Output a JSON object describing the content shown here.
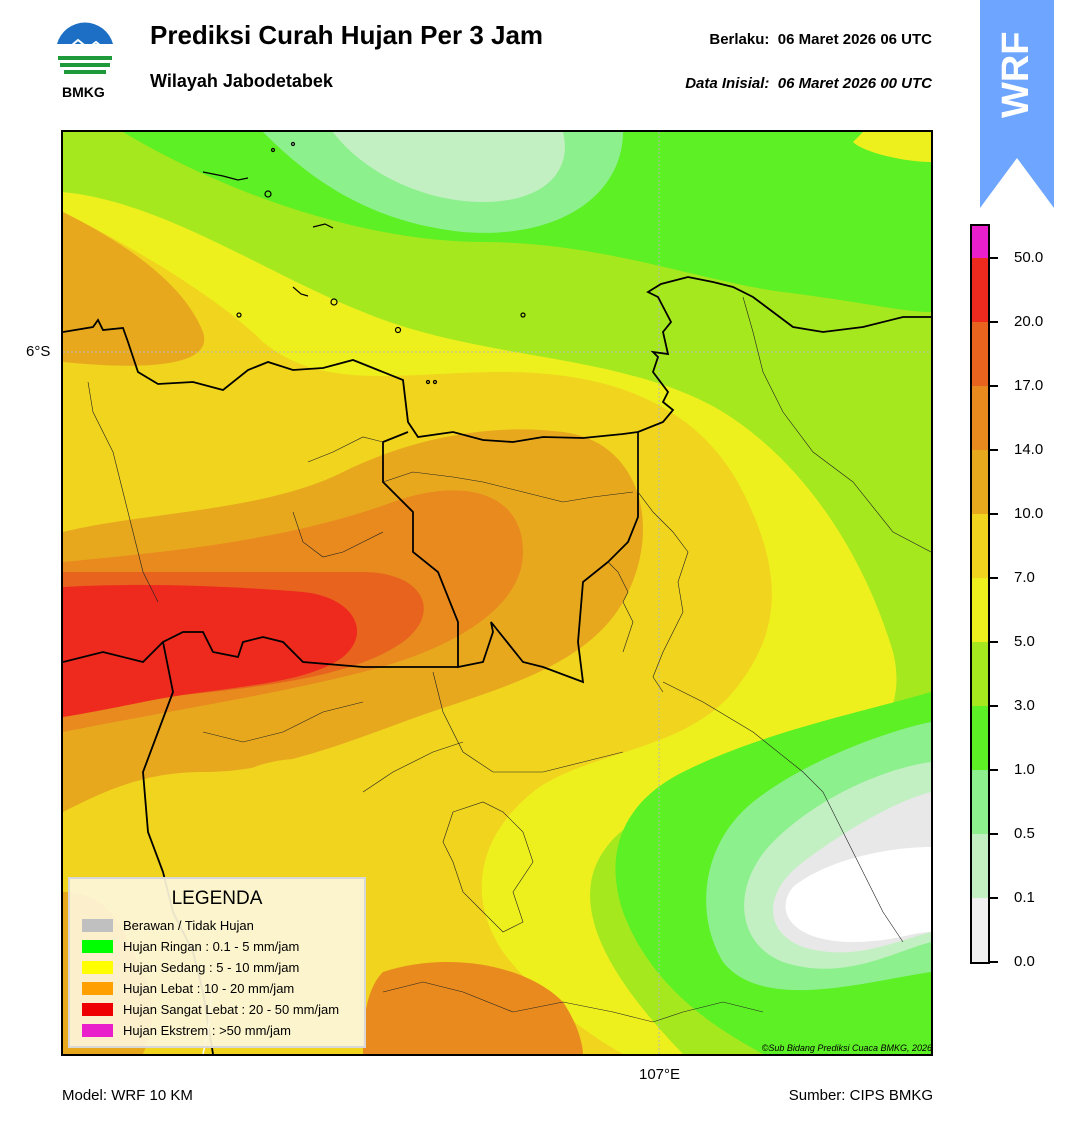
{
  "header": {
    "title": "Prediksi Curah Hujan Per 3 Jam",
    "subtitle": "Wilayah Jabodetabek",
    "valid_label": "Berlaku:",
    "valid_time": "06 Maret 2026 06 UTC",
    "init_label": "Data Inisial:",
    "init_time": "06 Maret 2026 00 UTC",
    "logo_text": "BMKG",
    "model_tab": "WRF",
    "model_tab_color": "#6ea5ff"
  },
  "map": {
    "lat_label": "6°S",
    "lon_label": "107°E",
    "credit": "©Sub Bidang Prediksi Cuaca BMKG, 2026"
  },
  "legend": {
    "title": "LEGENDA",
    "items": [
      {
        "label": "Berawan / Tidak Hujan",
        "color": "#c0c0c0"
      },
      {
        "label": "Hujan Ringan : 0.1 - 5 mm/jam",
        "color": "#00ff00"
      },
      {
        "label": "Hujan Sedang : 5 - 10 mm/jam",
        "color": "#ffff00"
      },
      {
        "label": "Hujan Lebat : 10 - 20 mm/jam",
        "color": "#ffa000"
      },
      {
        "label": "Hujan Sangat Lebat : 20 - 50 mm/jam",
        "color": "#ee0000"
      },
      {
        "label": "Hujan Ekstrem : >50 mm/jam",
        "color": "#e81fcb"
      }
    ]
  },
  "colorbar": {
    "ticks": [
      "0.0",
      "0.1",
      "0.5",
      "1.0",
      "3.0",
      "5.0",
      "7.0",
      "10.0",
      "14.0",
      "17.0",
      "20.0",
      "50.0"
    ],
    "colors": [
      "#f0f0f0",
      "#c3f0c3",
      "#8cf08c",
      "#5cf025",
      "#a6e81e",
      "#eef01e",
      "#f0d41e",
      "#e8a81e",
      "#e88a1e",
      "#e8641e",
      "#ee2a1e",
      "#e81fcb"
    ]
  },
  "footer": {
    "model": "Model: WRF 10 KM",
    "source": "Sumber: CIPS BMKG"
  }
}
